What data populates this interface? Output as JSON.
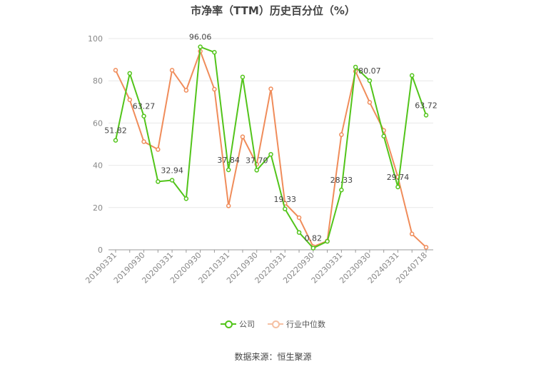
{
  "title": "市净率（TTM）历史百分位（%）",
  "source": "数据来源：恒生聚源",
  "chart_data": {
    "type": "line",
    "x": [
      "20190331",
      "20190630",
      "20190930",
      "20191231",
      "20200331",
      "20200630",
      "20200930",
      "20201231",
      "20210331",
      "20210630",
      "20210930",
      "20211231",
      "20220331",
      "20220630",
      "20220930",
      "20221231",
      "20230331",
      "20230630",
      "20230930",
      "20231231",
      "20240331",
      "20240630",
      "20240718"
    ],
    "x_tick_labels": [
      "20190331",
      "20190930",
      "20200331",
      "20200930",
      "20210331",
      "20210930",
      "20220331",
      "20220930",
      "20230331",
      "20230930",
      "20240331",
      "20240718"
    ],
    "ylim": [
      0,
      100
    ],
    "y_ticks": [
      0,
      20,
      40,
      60,
      80,
      100
    ],
    "grid": true,
    "legend_position": "bottom",
    "series": [
      {
        "name": "公司",
        "color": "#52c41a",
        "values": [
          51.82,
          83.5,
          63.27,
          32.3,
          32.94,
          24.2,
          96.06,
          93.5,
          37.84,
          81.8,
          37.7,
          45.2,
          19.33,
          8.2,
          0.82,
          4.0,
          28.33,
          86.5,
          80.07,
          53.8,
          29.74,
          82.5,
          63.72
        ],
        "labels": [
          "51.82",
          "",
          "63.27",
          "",
          "32.94",
          "",
          "96.06",
          "",
          "37.84",
          "",
          "37.70",
          "",
          "19.33",
          "",
          "0.82",
          "",
          "28.33",
          "",
          "80.07",
          "",
          "29.74",
          "",
          "63.72"
        ]
      },
      {
        "name": "行业中位数",
        "color": "#f08c5a",
        "values": [
          85.0,
          71.0,
          51.2,
          47.5,
          85.0,
          75.5,
          94.0,
          76.0,
          20.8,
          53.5,
          40.5,
          76.2,
          22.0,
          15.2,
          1.5,
          4.2,
          54.5,
          84.5,
          69.8,
          56.5,
          34.5,
          7.5,
          1.2
        ]
      }
    ]
  }
}
